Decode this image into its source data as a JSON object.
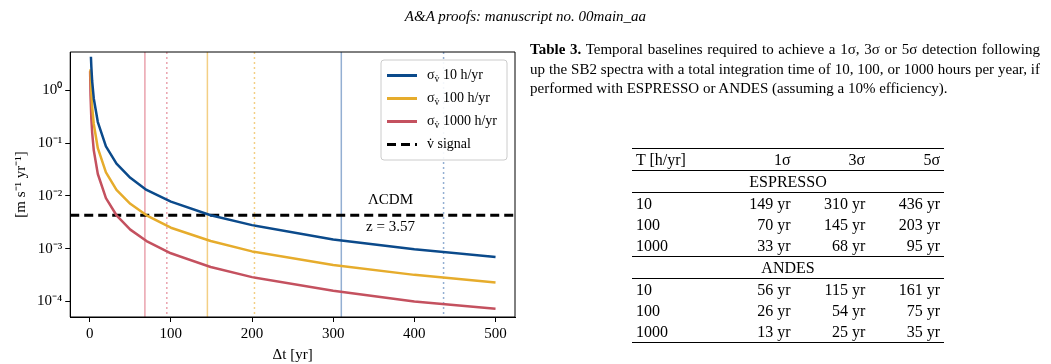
{
  "chart_data": [
    {
      "type": "line",
      "annotations": [
        "A&A proofs: manuscript no. 00main_aa",
        "ΛCDM",
        "z = 3.57"
      ],
      "xlabel": "Δt [yr]",
      "ylabel": "[m s⁻¹ yr⁻¹]",
      "log": "y",
      "grid": false,
      "legend": "top right",
      "marker": "none",
      "xlim": [
        -24,
        524
      ],
      "xticks": [
        0,
        100,
        200,
        300,
        400,
        500
      ],
      "ylim": [
        5.1e-05,
        5.3
      ],
      "yticks": [
        {
          "value": 0.0001,
          "label": "10⁻⁴"
        },
        {
          "value": 0.001,
          "label": "10⁻³"
        },
        {
          "value": 0.01,
          "label": "10⁻²"
        },
        {
          "value": 0.1,
          "label": "10⁻¹"
        },
        {
          "value": 1,
          "label": "10⁰"
        }
      ],
      "series": [
        {
          "name": "σ$_{v̇}$ 10 h/yr",
          "color": "#0b4a8b",
          "x": [
            1.5,
            2,
            3,
            5,
            10,
            20,
            33,
            50,
            70,
            100,
            149,
            200,
            300,
            400,
            500
          ],
          "values": [
            4.3,
            2.8,
            1.5,
            0.7,
            0.25,
            0.087,
            0.041,
            0.022,
            0.013,
            0.0078,
            0.0043,
            0.0028,
            0.0015,
            0.00098,
            0.0007
          ]
        },
        {
          "name": "σ$_{v̇}$ 100 h/yr",
          "color": "#e6ac2c",
          "x": [
            1,
            2,
            3,
            5,
            10,
            20,
            33,
            50,
            70,
            100,
            149,
            200,
            300,
            400,
            500
          ],
          "values": [
            2.5,
            0.89,
            0.49,
            0.23,
            0.08,
            0.028,
            0.013,
            0.0071,
            0.0043,
            0.0025,
            0.0014,
            0.00089,
            0.00049,
            0.00032,
            0.00023
          ]
        },
        {
          "name": "σ$_{v̇}$ 1000 h/yr",
          "color": "#c4515f",
          "x": [
            0.5,
            1,
            2,
            3,
            5,
            10,
            20,
            33,
            50,
            70,
            100,
            149,
            200,
            300,
            400,
            500
          ],
          "values": [
            2.3,
            0.82,
            0.29,
            0.16,
            0.073,
            0.026,
            0.0091,
            0.0043,
            0.0023,
            0.0014,
            0.00082,
            0.00045,
            0.00029,
            0.00016,
            0.0001,
            7.3e-05
          ]
        },
        {
          "name": "v̇ signal",
          "color": "#000000",
          "line_style": "dashed",
          "x": [
            -24,
            524
          ],
          "values": [
            0.0043,
            0.0043
          ]
        }
      ],
      "ref_lines": [
        {
          "axis": "x",
          "value": 68,
          "color": "#eaa3ad",
          "line_style": "solid"
        },
        {
          "axis": "x",
          "value": 95,
          "color": "#eaa3ad",
          "line_style": "dotted"
        },
        {
          "axis": "x",
          "value": 145,
          "color": "#f3cf85",
          "line_style": "solid"
        },
        {
          "axis": "x",
          "value": 203,
          "color": "#f3cf85",
          "line_style": "dotted"
        },
        {
          "axis": "x",
          "value": 310,
          "color": "#93afd2",
          "line_style": "solid"
        },
        {
          "axis": "x",
          "value": 436,
          "color": "#93afd2",
          "line_style": "dotted"
        }
      ]
    },
    {
      "type": "heatmap",
      "title": "Table 3. Temporal baselines required to achieve a 1σ, 3σ or 5σ detection following up the SB2 spectra with a total integration time of 10, 100, or 1000 hours per year, if performed with ESPRESSO or ANDES (assuming a 10% efficiency).",
      "annotations": [
        "ESPRESSO",
        "ANDES"
      ],
      "ylabel": "T [h/yr]",
      "categories": [
        "1σ",
        "3σ",
        "5σ"
      ],
      "y_categories": [
        "10",
        "100",
        "1000",
        "10",
        "100",
        "1000"
      ],
      "cells": [
        [
          149,
          310,
          436
        ],
        [
          70,
          145,
          203
        ],
        [
          33,
          68,
          95
        ],
        [
          56,
          115,
          161
        ],
        [
          26,
          54,
          75
        ],
        [
          13,
          25,
          35
        ]
      ],
      "cell_labels": [
        [
          "149 yr",
          "310 yr",
          "436 yr"
        ],
        [
          "70 yr",
          "145 yr",
          "203 yr"
        ],
        [
          "33 yr",
          "68 yr",
          "95 yr"
        ],
        [
          "56 yr",
          "115 yr",
          "161 yr"
        ],
        [
          "26 yr",
          "54 yr",
          "75 yr"
        ],
        [
          "13 yr",
          "25 yr",
          "35 yr"
        ]
      ]
    }
  ]
}
